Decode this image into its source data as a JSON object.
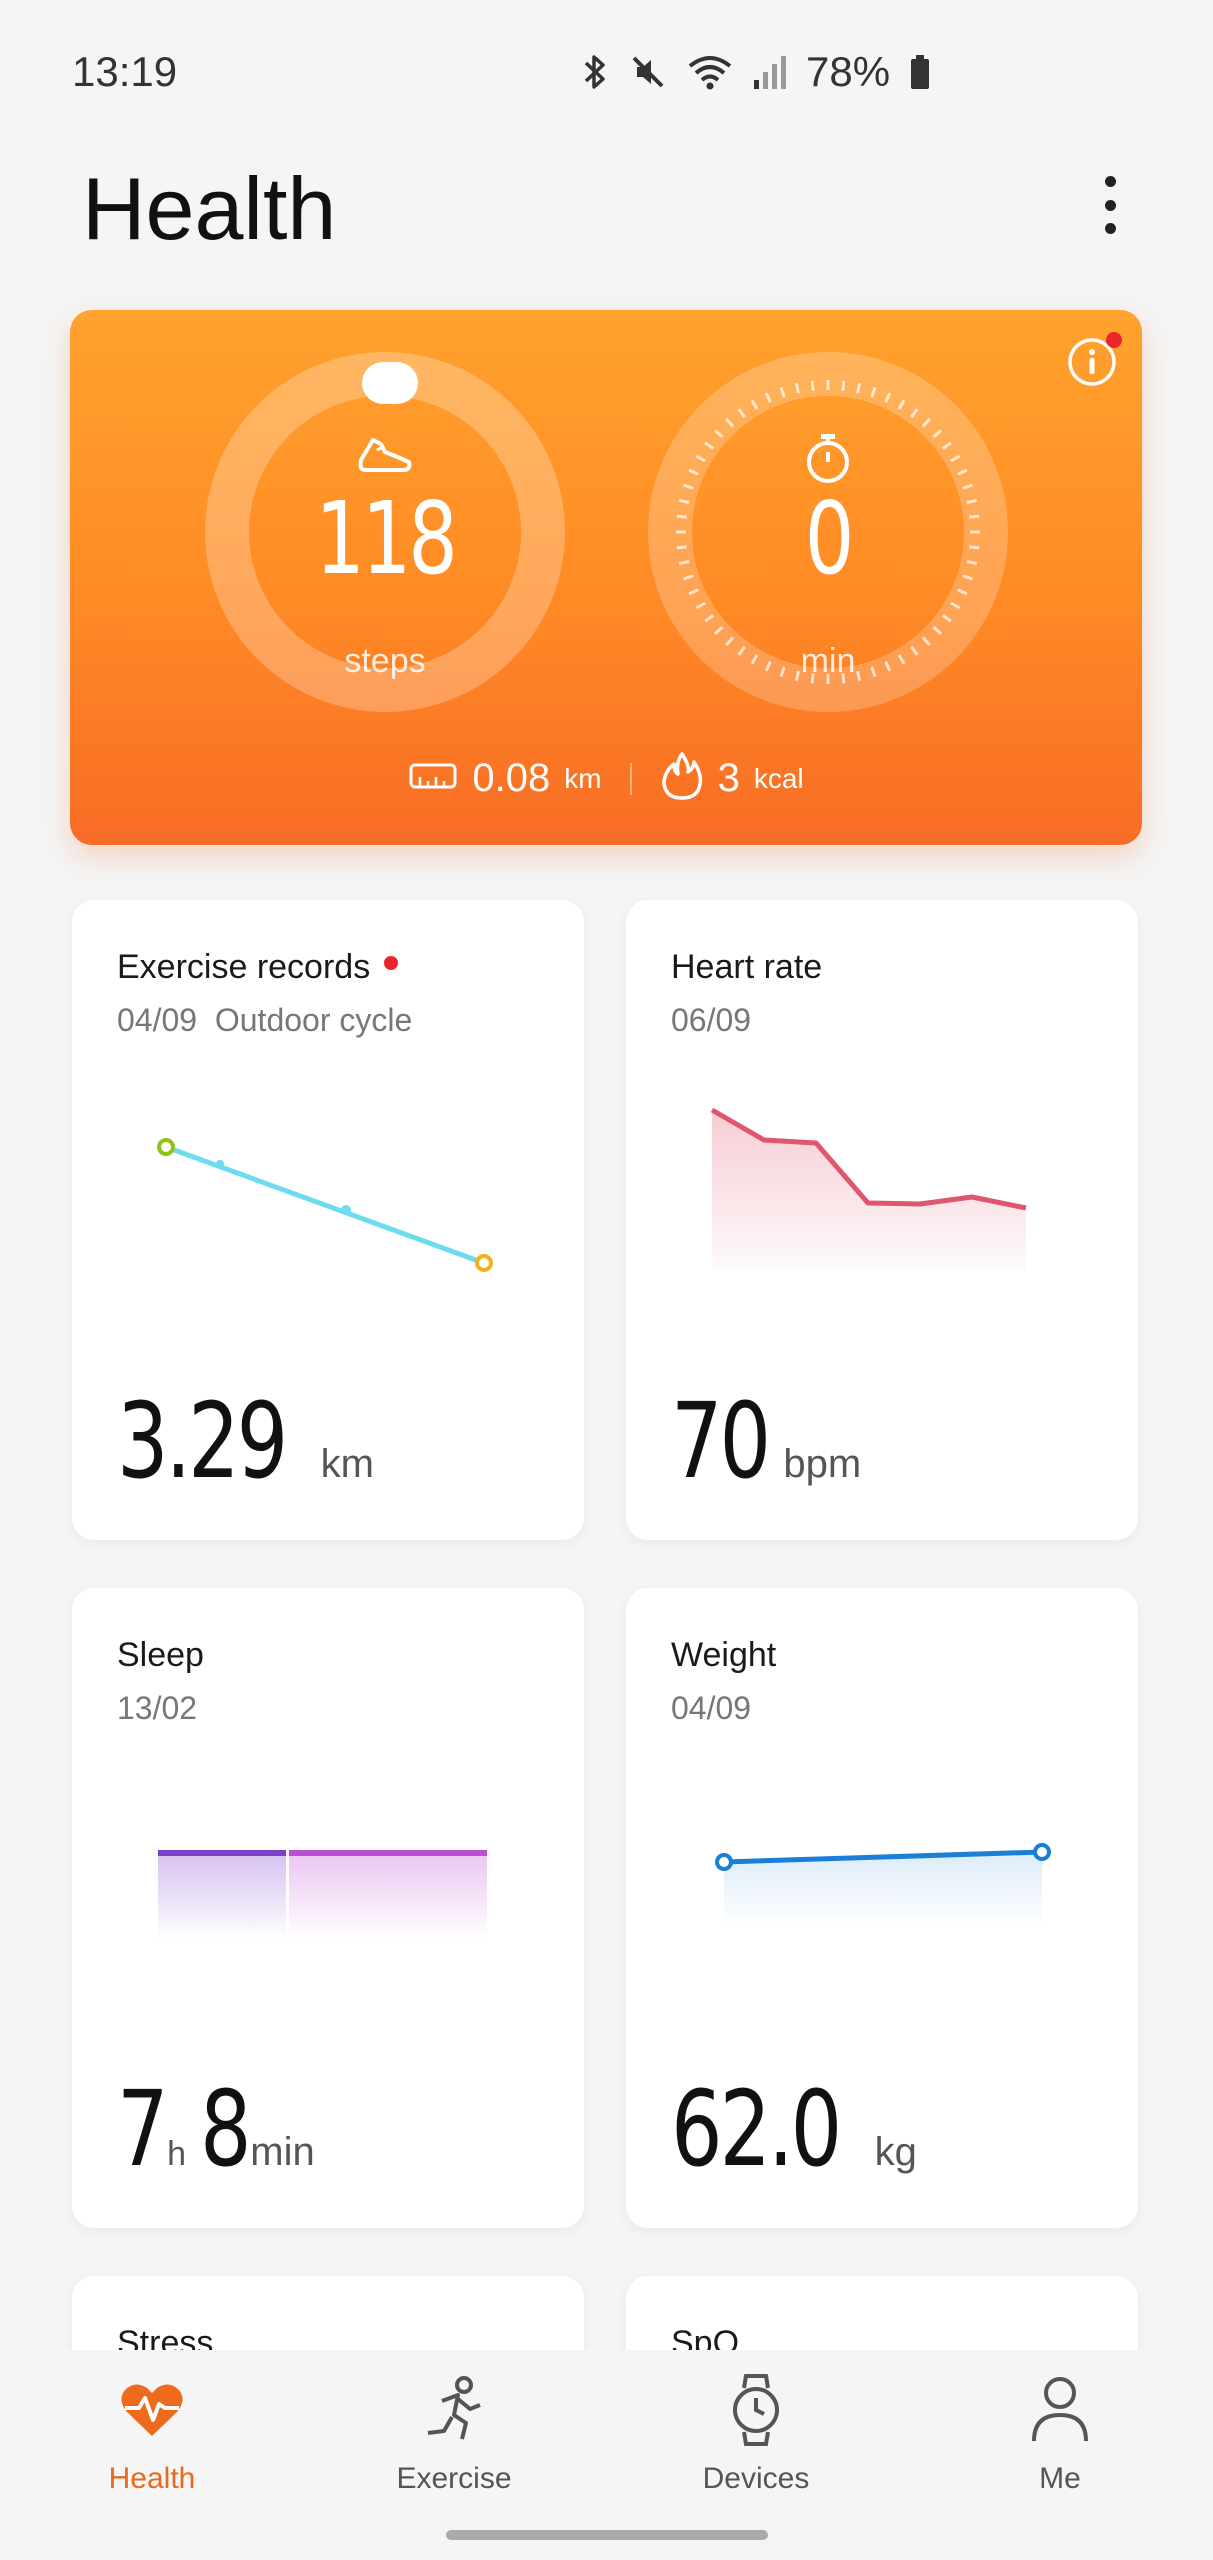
{
  "status_bar": {
    "time": "13:19",
    "battery": "78%"
  },
  "header": {
    "title": "Health"
  },
  "activity": {
    "steps_value": "118",
    "steps_unit": "steps",
    "time_value": "0",
    "time_unit": "min",
    "distance_value": "0.08",
    "distance_unit": "km",
    "calories_value": "3",
    "calories_unit": "kcal"
  },
  "cards": {
    "exercise": {
      "title": "Exercise records",
      "date": "04/09",
      "activity": "Outdoor cycle",
      "value": "3.29",
      "unit": "km"
    },
    "heart_rate": {
      "title": "Heart rate",
      "date": "06/09",
      "value": "70",
      "unit": "bpm"
    },
    "sleep": {
      "title": "Sleep",
      "date": "13/02",
      "hours": "7",
      "hours_unit": "h",
      "minutes": "8",
      "minutes_unit": "min"
    },
    "weight": {
      "title": "Weight",
      "date": "04/09",
      "value": "62.0",
      "unit": "kg"
    },
    "stress": {
      "title": "Stress"
    },
    "spo2": {
      "title": "SpO"
    }
  },
  "nav": {
    "health": "Health",
    "exercise": "Exercise",
    "devices": "Devices",
    "me": "Me"
  },
  "colors": {
    "accent": "#e96a1c",
    "hero_top": "#ffa22e",
    "hero_bottom": "#f76c25",
    "heart_line": "#e0566f",
    "exercise_line": "#6edcf0",
    "weight_line": "#1a7fd6",
    "sleep_bar": "#a64bd1"
  }
}
